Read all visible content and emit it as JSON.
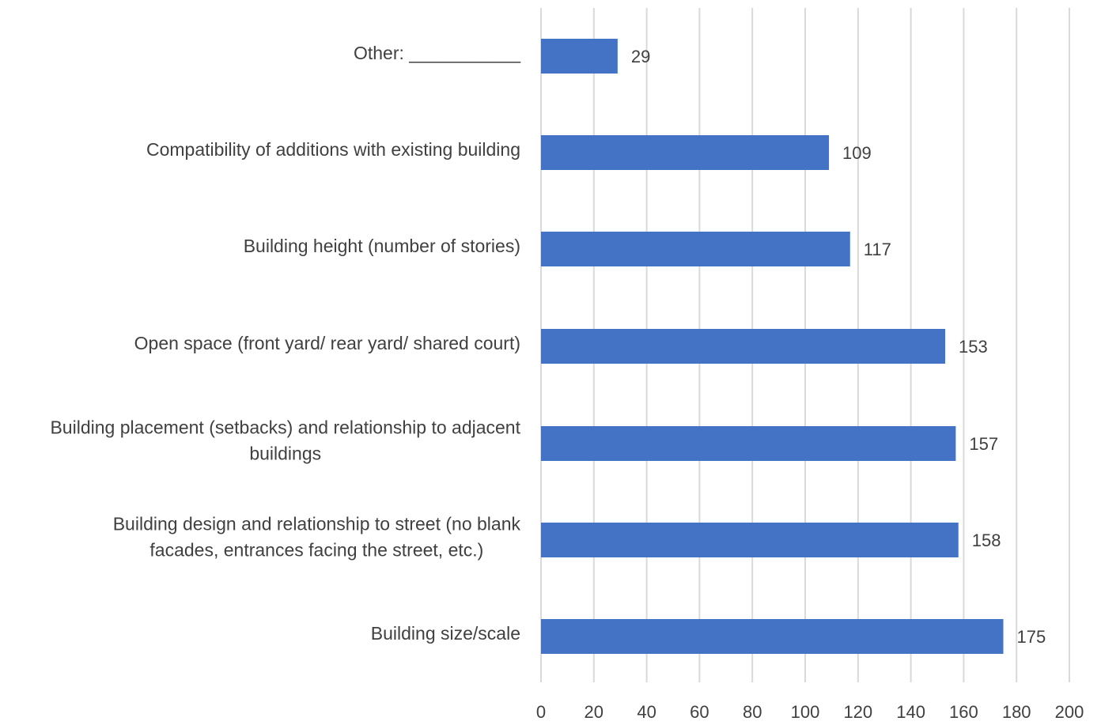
{
  "chart_data": {
    "type": "bar",
    "orientation": "horizontal",
    "title": "",
    "xlabel": "",
    "ylabel": "",
    "categories": [
      "Other: ___________",
      "Compatibility of additions with existing building",
      "Building height (number of stories)",
      "Open space (front yard/ rear yard/ shared court)",
      "Building placement (setbacks) and relationship to adjacent buildings",
      "Building design and relationship to street (no blank facades, entrances facing the street, etc.)",
      "Building size/scale"
    ],
    "category_lines": [
      [
        "Other: ___________"
      ],
      [
        "Compatibility of additions with existing building"
      ],
      [
        "Building height (number of stories)"
      ],
      [
        "Open space (front yard/ rear yard/ shared court)"
      ],
      [
        "Building placement (setbacks) and relationship to adjacent",
        "buildings"
      ],
      [
        "Building design and relationship to street (no blank",
        "facades, entrances facing the street, etc.)"
      ],
      [
        "Building size/scale"
      ]
    ],
    "values": [
      29,
      109,
      117,
      153,
      157,
      158,
      175
    ],
    "data_labels": [
      "29",
      "109",
      "117",
      "153",
      "157",
      "158",
      "175"
    ],
    "xlim": [
      0,
      200
    ],
    "x_ticks": [
      "0",
      "20",
      "40",
      "60",
      "80",
      "100",
      "120",
      "140",
      "160",
      "180",
      "200"
    ],
    "grid": "vertical",
    "legend": "none",
    "colors": {
      "bar": "#4472c4",
      "grid": "#d9d9d9",
      "text": "#404040"
    }
  }
}
